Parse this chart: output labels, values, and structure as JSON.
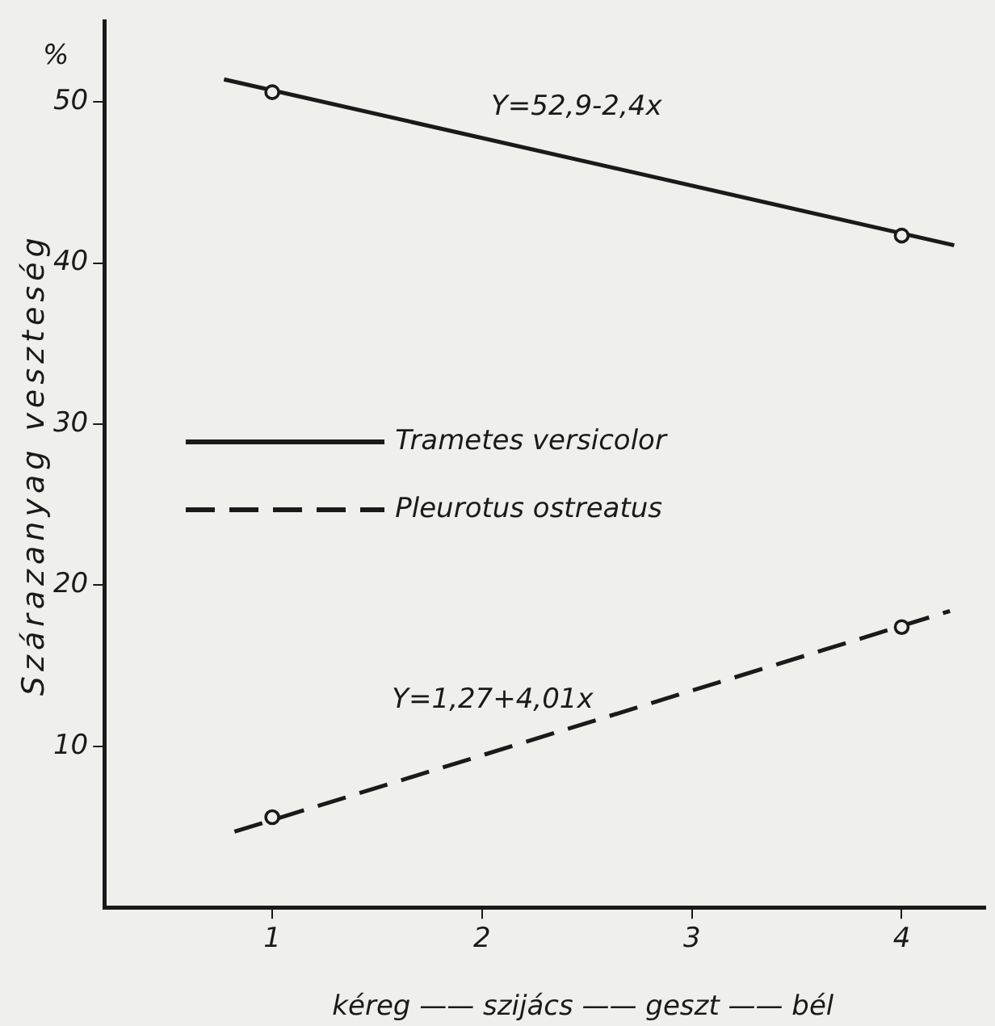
{
  "chart_data": {
    "type": "line",
    "ylabel": "Szárazanyag veszteség",
    "xlabel": "kéreg —— szijács —— geszt —— bél",
    "xlim": [
      0.2,
      4.4
    ],
    "xticks": [
      1,
      2,
      3,
      4
    ],
    "ylim": [
      0,
      55
    ],
    "yticks": [
      10,
      20,
      30,
      40,
      50
    ],
    "grid": false,
    "legend": "left",
    "series": [
      {
        "name": "Trametes versicolor",
        "type": "line",
        "color": "#1a1a1a",
        "line_style": "solid",
        "marker": "none",
        "x": [
          0.77,
          4.25
        ],
        "values": [
          51.4,
          41.1
        ]
      },
      {
        "name": "Pleurotus ostreatus",
        "type": "line",
        "color": "#1a1a1a",
        "line_style": "dashed",
        "marker": "none",
        "x": [
          0.82,
          4.23
        ],
        "values": [
          4.7,
          18.4
        ]
      },
      {
        "type": "scatter",
        "color": "#1a1a1a",
        "marker": "circle",
        "x": [
          1,
          4
        ],
        "values": [
          50.6,
          41.7
        ]
      },
      {
        "type": "scatter",
        "color": "#1a1a1a",
        "marker": "circle",
        "x": [
          1,
          4
        ],
        "values": [
          5.6,
          17.4
        ]
      }
    ],
    "annotations": [
      "%",
      {
        "text": "Y=52,9-2,4x",
        "x": 2.45,
        "y": 46.4
      },
      {
        "text": "Y=1,27+4,01x",
        "x": 2.05,
        "y": 9.6
      }
    ]
  }
}
